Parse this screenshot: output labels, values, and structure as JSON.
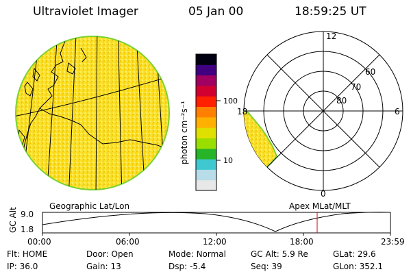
{
  "header": {
    "instrument": "Ultraviolet Imager",
    "date": "05 Jan 00",
    "time": "18:59:25 UT"
  },
  "colorbar": {
    "unit_label": "photon cm⁻²s⁻¹",
    "ticks": [
      {
        "label": "100",
        "value": 100
      },
      {
        "label": "10",
        "value": 10
      }
    ],
    "scale": "log",
    "colors": [
      "#e8e8e8",
      "#b8dce8",
      "#40c8d0",
      "#28b428",
      "#9ade00",
      "#e0e000",
      "#ffb000",
      "#ff8000",
      "#ff2000",
      "#d00030",
      "#a00060",
      "#400080",
      "#000010"
    ]
  },
  "polar": {
    "mlt_labels": [
      {
        "label": "12",
        "mlt": 12
      },
      {
        "label": "18",
        "mlt": 18
      },
      {
        "label": "6",
        "mlt": 6
      },
      {
        "label": "0",
        "mlt": 0
      }
    ],
    "mlat_labels": [
      {
        "label": "60",
        "mlat": 60
      },
      {
        "label": "70",
        "mlat": 70
      },
      {
        "label": "80",
        "mlat": 80
      }
    ]
  },
  "labels": {
    "left_panel": "Geographic Lat/Lon",
    "right_panel": "Apex  MLat/MLT"
  },
  "altitude_chart": {
    "ylabel": "GC Alt",
    "y_ticks": [
      "9.0",
      "1.8"
    ],
    "x_ticks": [
      "00:00",
      "06:00",
      "12:00",
      "18:00",
      "23:59"
    ],
    "current_time_marker": "18:59"
  },
  "status": {
    "row1": [
      {
        "key": "Flt:",
        "value": "HOME"
      },
      {
        "key": "Door:",
        "value": "Open"
      },
      {
        "key": "Mode:",
        "value": "Normal"
      },
      {
        "key": "GC Alt:",
        "value": "5.9 Re"
      },
      {
        "key": "GLat:",
        "value": "29.6"
      }
    ],
    "row2": [
      {
        "key": "IP:",
        "value": "36.0"
      },
      {
        "key": "Gain:",
        "value": "13"
      },
      {
        "key": "Dsp:",
        "value": "-5.4"
      },
      {
        "key": "Seq:",
        "value": "39"
      },
      {
        "key": "GLon:",
        "value": "352.1"
      }
    ]
  }
}
